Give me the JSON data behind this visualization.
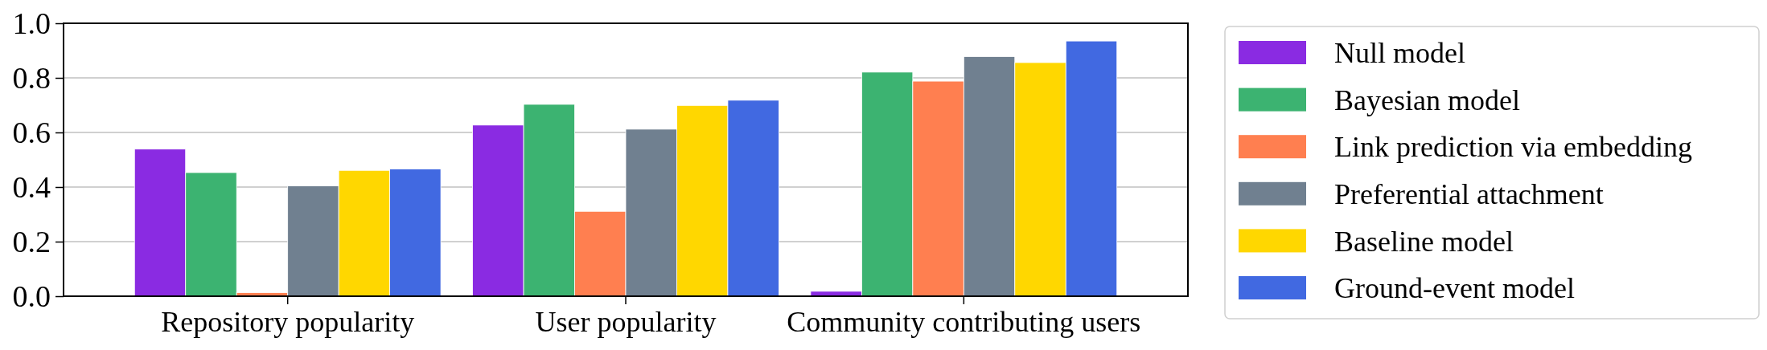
{
  "chart_data": {
    "type": "bar",
    "categories": [
      "Repository popularity",
      "User popularity",
      "Community contributing users"
    ],
    "series": [
      {
        "name": "Null model",
        "color": "#8a2be2",
        "values": [
          0.539,
          0.627,
          0.018
        ]
      },
      {
        "name": "Bayesian model",
        "color": "#3cb371",
        "values": [
          0.453,
          0.703,
          0.821
        ]
      },
      {
        "name": "Link prediction via embedding",
        "color": "#ff7f50",
        "values": [
          0.013,
          0.311,
          0.788
        ]
      },
      {
        "name": "Preferential attachment",
        "color": "#708090",
        "values": [
          0.404,
          0.612,
          0.878
        ]
      },
      {
        "name": "Baseline model",
        "color": "#ffd700",
        "values": [
          0.461,
          0.699,
          0.856
        ]
      },
      {
        "name": "Ground-event model",
        "color": "#4169e1",
        "values": [
          0.466,
          0.718,
          0.935
        ]
      }
    ],
    "ylim": [
      0,
      1
    ],
    "yticks": [
      {
        "value": 0,
        "label": "0.0"
      },
      {
        "value": 0.2,
        "label": "0.2"
      },
      {
        "value": 0.4,
        "label": "0.4"
      },
      {
        "value": 0.6,
        "label": "0.6"
      },
      {
        "value": 0.8,
        "label": "0.8"
      },
      {
        "value": 1,
        "label": "1.0"
      }
    ],
    "grid": "y",
    "legend": "right"
  }
}
